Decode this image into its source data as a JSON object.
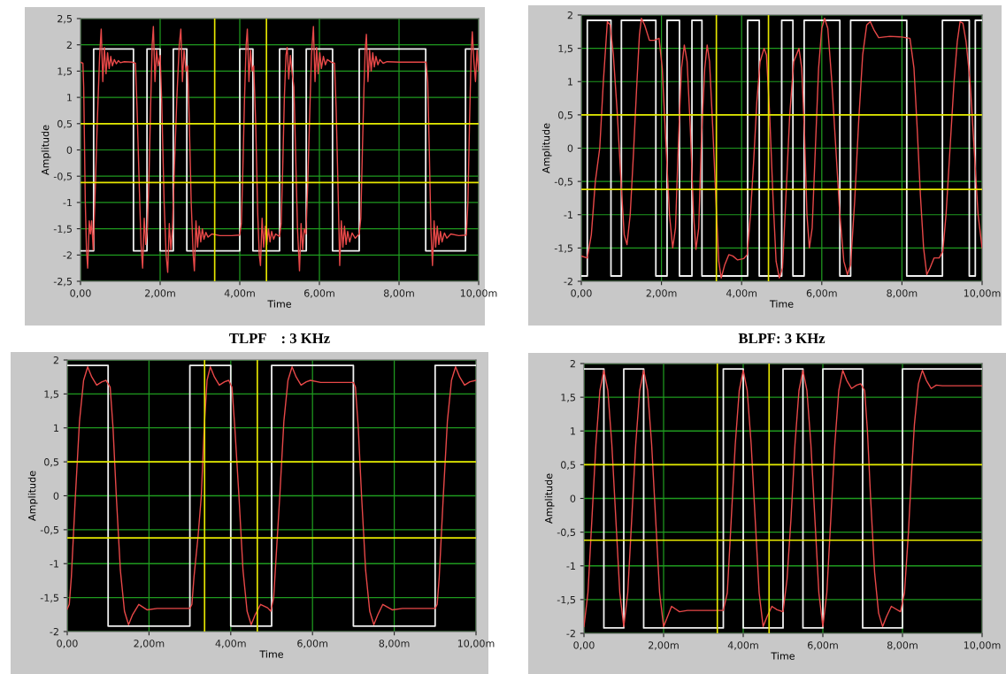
{
  "chart_data": [
    {
      "type": "line",
      "xlabel": "Time",
      "ylabel": "Amplitude",
      "annotations": [
        "TLPF    : 3 KHz"
      ],
      "grid": true,
      "xlim": [
        0,
        10
      ],
      "ylim": [
        -2.5,
        2.5
      ],
      "xticks": [
        {
          "value": 0,
          "label": "0,00"
        },
        {
          "value": 2,
          "label": "2,00m"
        },
        {
          "value": 4,
          "label": "4,00m"
        },
        {
          "value": 6,
          "label": "6,00m"
        },
        {
          "value": 8,
          "label": "8,00m"
        },
        {
          "value": 10,
          "label": "10,00m"
        }
      ],
      "yticks": [
        {
          "value": -2.5,
          "label": "-2,5"
        },
        -2,
        {
          "value": -1.5,
          "label": "-1,5"
        },
        -1,
        {
          "value": -0.5,
          "label": "-0,5"
        },
        0,
        {
          "value": 0.5,
          "label": "0,5"
        },
        1,
        {
          "value": 1.5,
          "label": "1,5"
        },
        2,
        {
          "value": 2.5,
          "label": "2,5"
        }
      ],
      "ref_lines": [
        {
          "axis": "x",
          "value": 3.37,
          "color": "#e6e600"
        },
        {
          "axis": "x",
          "value": 4.67,
          "color": "#e6e600"
        },
        {
          "axis": "y",
          "value": 0.5,
          "color": "#e6e600"
        },
        {
          "axis": "y",
          "value": -0.62,
          "color": "#e6e600"
        }
      ],
      "series": [
        {
          "type": "step",
          "color": "#f0f0f0",
          "x": [
            0,
            0.33,
            1.33,
            1.67,
            2,
            2.33,
            2.67,
            4,
            4.33,
            5,
            5.33,
            5.67,
            6.33,
            7,
            8.67,
            9.67,
            10
          ],
          "values": [
            -1.92,
            1.92,
            -1.92,
            1.92,
            -1.92,
            1.92,
            -1.92,
            1.92,
            -1.92,
            1.92,
            -1.92,
            1.92,
            -1.92,
            1.92,
            -1.92,
            1.92,
            1.92
          ]
        },
        {
          "type": "line",
          "color": "#e84848",
          "x": [
            0,
            0.06,
            0.08,
            0.12,
            0.15,
            0.18,
            0.22,
            0.25,
            0.28,
            0.32,
            0.36,
            0.42,
            0.48,
            0.52,
            0.56,
            0.6,
            0.64,
            0.68,
            0.72,
            0.76,
            0.8,
            0.85,
            0.9,
            0.95,
            1.0,
            1.1,
            1.3,
            1.38,
            1.42,
            1.48,
            1.52,
            1.56,
            1.6,
            1.64,
            1.68,
            1.72,
            1.76,
            1.8,
            1.83,
            1.87,
            1.91,
            1.95,
            2.0,
            2.04,
            2.1,
            2.15,
            2.19,
            2.23,
            2.27,
            2.31,
            2.36,
            2.42,
            2.48,
            2.52,
            2.56,
            2.6,
            2.65,
            2.69,
            2.73,
            2.78,
            2.83,
            2.86,
            2.9,
            2.94,
            2.98,
            3.02,
            3.06,
            3.1,
            3.15,
            3.2,
            3.3,
            3.5,
            3.8,
            4.0,
            4.04,
            4.08,
            4.12,
            4.16,
            4.19,
            4.23,
            4.27,
            4.31,
            4.35,
            4.4,
            4.45,
            4.49,
            4.52,
            4.56,
            4.6,
            4.64,
            4.68,
            4.72,
            4.76,
            4.8,
            4.85,
            4.9,
            5.0,
            5.04,
            5.08,
            5.12,
            5.16,
            5.19,
            5.23,
            5.27,
            5.31,
            5.36,
            5.4,
            5.45,
            5.5,
            5.54,
            5.58,
            5.62,
            5.66,
            5.7,
            5.75,
            5.8,
            5.85,
            5.89,
            5.93,
            5.97,
            6.01,
            6.05,
            6.1,
            6.15,
            6.2,
            6.3,
            6.38,
            6.42,
            6.47,
            6.51,
            6.55,
            6.59,
            6.63,
            6.67,
            6.71,
            6.76,
            6.82,
            6.9,
            7.0,
            7.04,
            7.08,
            7.12,
            7.15,
            7.18,
            7.22,
            7.26,
            7.3,
            7.34,
            7.38,
            7.42,
            7.47,
            7.52,
            7.6,
            7.7,
            8.0,
            8.68,
            8.72,
            8.76,
            8.8,
            8.84,
            8.88,
            8.92,
            8.96,
            9.0,
            9.04,
            9.08,
            9.14,
            9.2,
            9.3,
            9.5,
            9.69,
            9.73,
            9.77,
            9.81,
            9.84,
            9.88,
            9.92,
            9.96,
            10
          ],
          "values": [
            1.67,
            1.65,
            1.2,
            -1.0,
            -1.9,
            -2.25,
            -1.35,
            -1.6,
            -1.35,
            -1.9,
            -1.0,
            0.5,
            1.8,
            2.3,
            1.3,
            1.95,
            1.45,
            1.85,
            1.55,
            1.78,
            1.6,
            1.72,
            1.64,
            1.7,
            1.66,
            1.68,
            1.67,
            1.65,
            0.8,
            -0.8,
            -1.8,
            -2.25,
            -1.3,
            -1.8,
            -1.5,
            -0.5,
            0.8,
            2.0,
            2.35,
            1.3,
            1.9,
            1.6,
            1.8,
            0.9,
            -1.0,
            -2.0,
            -2.33,
            -1.4,
            -1.9,
            -1.5,
            -0.3,
            1.0,
            2.0,
            2.3,
            1.3,
            1.9,
            1.5,
            1.6,
            0.6,
            -1.0,
            -2.0,
            -2.3,
            -1.35,
            -1.85,
            -1.45,
            -1.75,
            -1.5,
            -1.7,
            -1.57,
            -1.66,
            -1.6,
            -1.63,
            -1.63,
            -1.62,
            -1.4,
            -0.3,
            1.0,
            2.0,
            2.3,
            1.3,
            1.9,
            1.5,
            1.6,
            0.5,
            -1.2,
            -2.0,
            -2.2,
            -1.3,
            -1.85,
            -1.45,
            -1.8,
            -1.5,
            -1.75,
            -1.55,
            -1.7,
            -1.6,
            -1.65,
            -1.4,
            -0.3,
            1.0,
            1.8,
            1.95,
            1.35,
            1.8,
            1.5,
            1.2,
            0.0,
            -1.5,
            -2.3,
            -1.4,
            -1.9,
            -1.5,
            -1.6,
            -0.8,
            0.5,
            1.8,
            2.35,
            1.3,
            1.95,
            1.45,
            1.85,
            1.55,
            1.78,
            1.62,
            1.72,
            1.67,
            1.65,
            0.8,
            -0.8,
            -2.2,
            -1.35,
            -1.85,
            -1.45,
            -1.8,
            -1.55,
            -1.75,
            -1.58,
            -1.68,
            -1.6,
            -1.3,
            0.0,
            1.2,
            1.9,
            2.2,
            1.3,
            1.9,
            1.5,
            1.85,
            1.58,
            1.78,
            1.62,
            1.72,
            1.65,
            1.68,
            1.67,
            1.67,
            1.3,
            0.0,
            -1.5,
            -2.2,
            -1.35,
            -1.85,
            -1.45,
            -1.8,
            -1.55,
            -1.75,
            -1.58,
            -1.68,
            -1.6,
            -1.63,
            -1.62,
            -1.0,
            0.5,
            1.8,
            2.25,
            1.7,
            1.3,
            1.9,
            1.5
          ]
        }
      ]
    },
    {
      "type": "line",
      "xlabel": "Time",
      "ylabel": "Amplitude",
      "annotations": [
        "BLPF: 3 KHz"
      ],
      "grid": true,
      "xlim": [
        0,
        10
      ],
      "ylim": [
        -2,
        2
      ],
      "xticks": [
        {
          "value": 0,
          "label": "0,00"
        },
        {
          "value": 2,
          "label": "2,00m"
        },
        {
          "value": 4,
          "label": "4,00m"
        },
        {
          "value": 6,
          "label": "6,00m"
        },
        {
          "value": 8,
          "label": "8,00m"
        },
        {
          "value": 10,
          "label": "10,00m"
        }
      ],
      "yticks": [
        -2,
        {
          "value": -1.5,
          "label": "-1,5"
        },
        -1,
        {
          "value": -0.5,
          "label": "-0,5"
        },
        0,
        {
          "value": 0.5,
          "label": "0,5"
        },
        1,
        {
          "value": 1.5,
          "label": "1,5"
        },
        2
      ],
      "ref_lines": [
        {
          "axis": "x",
          "value": 3.37,
          "color": "#e6e600"
        },
        {
          "axis": "x",
          "value": 4.67,
          "color": "#e6e600"
        },
        {
          "axis": "y",
          "value": 0.5,
          "color": "#e6e600"
        },
        {
          "axis": "y",
          "value": -0.62,
          "color": "#e6e600"
        }
      ],
      "series": [
        {
          "type": "step",
          "color": "#f0f0f0",
          "x": [
            0,
            0.15,
            0.74,
            1.0,
            1.86,
            2.14,
            2.45,
            2.76,
            3.01,
            4.15,
            4.44,
            5.0,
            5.28,
            5.56,
            6.45,
            6.72,
            8.12,
            9.01,
            9.68,
            9.83,
            10
          ],
          "values": [
            -1.92,
            1.92,
            -1.92,
            1.92,
            -1.92,
            1.92,
            -1.92,
            1.92,
            -1.92,
            1.92,
            -1.92,
            1.92,
            -1.92,
            1.92,
            -1.92,
            1.92,
            -1.92,
            1.92,
            -1.92,
            1.92,
            1.92
          ]
        },
        {
          "type": "line",
          "color": "#e84848",
          "x": [
            0,
            0.15,
            0.25,
            0.35,
            0.46,
            0.55,
            0.65,
            0.72,
            0.8,
            0.9,
            1.0,
            1.07,
            1.14,
            1.22,
            1.3,
            1.38,
            1.45,
            1.5,
            1.58,
            1.7,
            1.82,
            1.94,
            2.02,
            2.1,
            2.2,
            2.28,
            2.35,
            2.43,
            2.5,
            2.57,
            2.64,
            2.72,
            2.8,
            2.86,
            2.93,
            3.0,
            3.08,
            3.14,
            3.2,
            3.28,
            3.36,
            3.43,
            3.49,
            3.58,
            3.68,
            3.78,
            3.9,
            4.05,
            4.14,
            4.22,
            4.3,
            4.38,
            4.46,
            4.56,
            4.62,
            4.7,
            4.78,
            4.86,
            4.94,
            5.02,
            5.1,
            5.2,
            5.3,
            5.43,
            5.5,
            5.57,
            5.63,
            5.69,
            5.76,
            5.84,
            5.92,
            6.0,
            6.07,
            6.15,
            6.25,
            6.35,
            6.45,
            6.55,
            6.64,
            6.72,
            6.82,
            6.92,
            7.02,
            7.12,
            7.21,
            7.3,
            7.42,
            7.55,
            7.7,
            8.0,
            8.2,
            8.3,
            8.38,
            8.46,
            8.54,
            8.62,
            8.7,
            8.8,
            8.93,
            9.02,
            9.1,
            9.2,
            9.3,
            9.38,
            9.45,
            9.52,
            9.6,
            9.7,
            9.8,
            9.9,
            10
          ],
          "values": [
            -1.62,
            -1.65,
            -1.3,
            -0.5,
            0.0,
            1.0,
            1.9,
            1.85,
            1.4,
            0.5,
            -0.6,
            -1.3,
            -1.45,
            -1.0,
            -0.1,
            0.9,
            1.7,
            1.95,
            1.85,
            1.62,
            1.62,
            1.65,
            1.2,
            0.2,
            -1.0,
            -1.5,
            -1.2,
            0.2,
            1.2,
            1.55,
            1.3,
            0.3,
            -1.0,
            -1.52,
            -1.2,
            0.2,
            1.2,
            1.55,
            1.3,
            0.3,
            -0.8,
            -1.7,
            -1.95,
            -1.75,
            -1.6,
            -1.62,
            -1.68,
            -1.66,
            -1.6,
            -1.0,
            -0.2,
            0.7,
            1.3,
            1.5,
            1.4,
            0.5,
            -0.7,
            -1.7,
            -1.95,
            -1.8,
            -0.8,
            0.5,
            1.3,
            1.5,
            1.2,
            0.2,
            -1.0,
            -1.5,
            -1.2,
            0.0,
            1.2,
            1.8,
            1.95,
            1.8,
            1.0,
            0.0,
            -1.0,
            -1.7,
            -1.9,
            -1.75,
            -0.8,
            0.4,
            1.4,
            1.85,
            1.9,
            1.78,
            1.66,
            1.67,
            1.68,
            1.67,
            1.65,
            1.2,
            0.3,
            -0.7,
            -1.5,
            -1.9,
            -1.8,
            -1.65,
            -1.65,
            -1.55,
            -1.0,
            0.0,
            1.0,
            1.6,
            1.9,
            1.88,
            1.6,
            1.0,
            0.0,
            -1.0,
            -1.5
          ]
        }
      ]
    },
    {
      "type": "line",
      "xlabel": "Time",
      "ylabel": "Amplitude",
      "grid": true,
      "xlim": [
        0,
        10
      ],
      "ylim": [
        -2,
        2
      ],
      "xticks": [
        {
          "value": 0,
          "label": "0,00"
        },
        {
          "value": 2,
          "label": "2,00m"
        },
        {
          "value": 4,
          "label": "4,00m"
        },
        {
          "value": 6,
          "label": "6,00m"
        },
        {
          "value": 8,
          "label": "8,00m"
        },
        {
          "value": 10,
          "label": "10,00m"
        }
      ],
      "yticks": [
        -2,
        {
          "value": -1.5,
          "label": "-1,5"
        },
        -1,
        {
          "value": -0.5,
          "label": "-0,5"
        },
        0,
        {
          "value": 0.5,
          "label": "0,5"
        },
        1,
        {
          "value": 1.5,
          "label": "1,5"
        },
        2
      ],
      "ref_lines": [
        {
          "axis": "x",
          "value": 3.36,
          "color": "#e6e600"
        },
        {
          "axis": "x",
          "value": 4.65,
          "color": "#e6e600"
        },
        {
          "axis": "y",
          "value": 0.5,
          "color": "#e6e600"
        },
        {
          "axis": "y",
          "value": -0.62,
          "color": "#e6e600"
        }
      ],
      "series": [
        {
          "type": "step",
          "color": "#f0f0f0",
          "x": [
            0,
            1,
            3,
            4,
            5,
            7,
            9,
            10
          ],
          "values": [
            1.92,
            -1.92,
            1.92,
            -1.92,
            1.92,
            -1.92,
            1.92,
            1.92
          ]
        },
        {
          "type": "line",
          "color": "#e84848",
          "x": [
            0,
            0.05,
            0.1,
            0.15,
            0.2,
            0.3,
            0.4,
            0.5,
            0.6,
            0.72,
            0.85,
            0.95,
            1.05,
            1.12,
            1.2,
            1.3,
            1.4,
            1.5,
            1.6,
            1.75,
            1.95,
            2.2,
            3.0,
            3.05,
            3.1,
            3.2,
            3.28,
            3.35,
            3.42,
            3.5,
            3.6,
            3.72,
            3.85,
            3.95,
            4.03,
            4.1,
            4.2,
            4.3,
            4.4,
            4.5,
            4.6,
            4.73,
            4.9,
            4.98,
            5.05,
            5.12,
            5.2,
            5.3,
            5.4,
            5.5,
            5.6,
            5.72,
            5.85,
            5.95,
            6.2,
            7.0,
            7.05,
            7.12,
            7.2,
            7.3,
            7.4,
            7.5,
            7.6,
            7.72,
            7.95,
            8.2,
            9.0,
            9.05,
            9.1,
            9.2,
            9.3,
            9.4,
            9.5,
            9.6,
            9.72,
            9.85,
            10
          ],
          "values": [
            -1.67,
            -1.6,
            -1.2,
            -0.6,
            0.0,
            1.1,
            1.7,
            1.9,
            1.75,
            1.63,
            1.68,
            1.7,
            1.6,
            1.0,
            0.0,
            -1.1,
            -1.7,
            -1.9,
            -1.75,
            -1.6,
            -1.68,
            -1.66,
            -1.66,
            -1.6,
            -1.2,
            -0.6,
            0.0,
            1.0,
            1.7,
            1.9,
            1.75,
            1.63,
            1.68,
            1.7,
            1.6,
            1.0,
            0.0,
            -1.1,
            -1.7,
            -1.9,
            -1.75,
            -1.6,
            -1.65,
            -1.7,
            -1.5,
            -0.8,
            0.0,
            1.1,
            1.7,
            1.9,
            1.75,
            1.63,
            1.68,
            1.7,
            1.67,
            1.67,
            1.6,
            1.0,
            0.0,
            -1.1,
            -1.7,
            -1.9,
            -1.75,
            -1.6,
            -1.68,
            -1.66,
            -1.66,
            -1.6,
            -1.2,
            0.0,
            1.1,
            1.7,
            1.9,
            1.75,
            1.63,
            1.68,
            1.7
          ]
        }
      ]
    },
    {
      "type": "line",
      "xlabel": "Time",
      "ylabel": "Amplitude",
      "grid": true,
      "xlim": [
        0,
        10
      ],
      "ylim": [
        -2,
        2
      ],
      "xticks": [
        {
          "value": 0,
          "label": "0,00"
        },
        {
          "value": 2,
          "label": "2,00m"
        },
        {
          "value": 4,
          "label": "4,00m"
        },
        {
          "value": 6,
          "label": "6,00m"
        },
        {
          "value": 8,
          "label": "8,00m"
        },
        {
          "value": 10,
          "label": "10,00m"
        }
      ],
      "yticks": [
        -2,
        {
          "value": -1.5,
          "label": "-1,5"
        },
        -1,
        {
          "value": -0.5,
          "label": "-0,5"
        },
        0,
        {
          "value": 0.5,
          "label": "0,5"
        },
        1,
        {
          "value": 1.5,
          "label": "1,5"
        },
        2
      ],
      "ref_lines": [
        {
          "axis": "x",
          "value": 3.35,
          "color": "#e6e600"
        },
        {
          "axis": "x",
          "value": 4.65,
          "color": "#e6e600"
        },
        {
          "axis": "y",
          "value": 0.5,
          "color": "#e6e600"
        },
        {
          "axis": "y",
          "value": -0.62,
          "color": "#e6e600"
        }
      ],
      "series": [
        {
          "type": "step",
          "color": "#f0f0f0",
          "x": [
            0,
            0.5,
            1,
            1.5,
            3.5,
            4,
            5,
            5.5,
            6,
            7,
            8,
            10
          ],
          "values": [
            1.92,
            -1.92,
            1.92,
            -1.92,
            1.92,
            -1.92,
            1.92,
            -1.92,
            1.92,
            -1.92,
            1.92,
            1.92
          ]
        },
        {
          "type": "line",
          "color": "#e84848",
          "x": [
            0,
            0.1,
            0.2,
            0.3,
            0.4,
            0.5,
            0.6,
            0.7,
            0.8,
            0.9,
            1.0,
            1.1,
            1.2,
            1.3,
            1.4,
            1.5,
            1.6,
            1.7,
            1.8,
            1.9,
            2.0,
            2.1,
            2.2,
            2.4,
            2.6,
            3.5,
            3.6,
            3.7,
            3.8,
            3.9,
            4.0,
            4.1,
            4.2,
            4.3,
            4.4,
            4.5,
            4.6,
            4.72,
            4.85,
            5.0,
            5.1,
            5.2,
            5.3,
            5.4,
            5.5,
            5.6,
            5.7,
            5.8,
            5.9,
            6.0,
            6.1,
            6.2,
            6.3,
            6.4,
            6.5,
            6.6,
            6.72,
            6.85,
            6.95,
            7.05,
            7.12,
            7.2,
            7.3,
            7.4,
            7.5,
            7.6,
            7.72,
            7.95,
            8.05,
            8.15,
            8.22,
            8.3,
            8.4,
            8.5,
            8.6,
            8.72,
            8.85,
            9.0,
            10
          ],
          "values": [
            -1.9,
            -1.4,
            -0.3,
            0.8,
            1.6,
            1.9,
            1.6,
            0.8,
            -0.3,
            -1.4,
            -1.9,
            -1.4,
            -0.3,
            0.8,
            1.6,
            1.9,
            1.6,
            0.8,
            -0.3,
            -1.4,
            -1.9,
            -1.75,
            -1.6,
            -1.68,
            -1.66,
            -1.66,
            -1.4,
            -0.3,
            0.8,
            1.6,
            1.9,
            1.6,
            0.8,
            -0.3,
            -1.4,
            -1.9,
            -1.75,
            -1.6,
            -1.65,
            -1.68,
            -1.2,
            -0.3,
            0.8,
            1.6,
            1.9,
            1.6,
            0.8,
            -0.3,
            -1.4,
            -1.9,
            -1.4,
            -0.3,
            0.8,
            1.6,
            1.9,
            1.75,
            1.63,
            1.68,
            1.7,
            1.6,
            1.0,
            0.0,
            -1.1,
            -1.7,
            -1.9,
            -1.75,
            -1.6,
            -1.68,
            -1.4,
            -0.5,
            0.3,
            1.1,
            1.7,
            1.9,
            1.75,
            1.63,
            1.68,
            1.67,
            1.67
          ]
        }
      ]
    }
  ]
}
